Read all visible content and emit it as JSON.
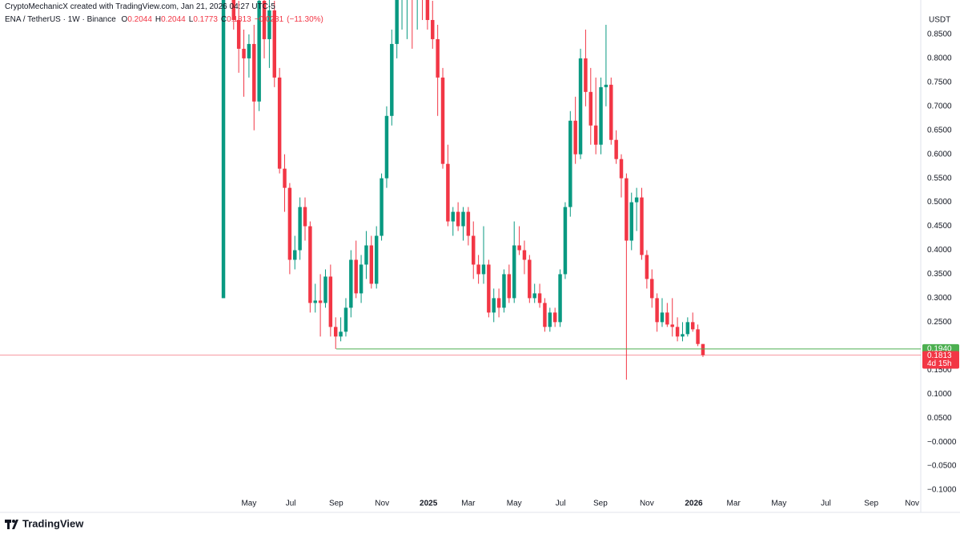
{
  "chart_data": {
    "type": "candlestick",
    "attribution": "CryptoMechanicX created with TradingView.com, Jan 21, 2026 04:27 UTC-5",
    "legend": {
      "symbol": "ENA / TetherUS · 1W · Binance",
      "ohlc": [
        {
          "label": "O",
          "value": 0.2044
        },
        {
          "label": "H",
          "value": 0.2044
        },
        {
          "label": "L",
          "value": 0.1773
        },
        {
          "label": "C",
          "value": 0.1813
        }
      ],
      "change": "−0.0231",
      "change_pct": "(−11.30%)"
    },
    "currency": "USDT",
    "brand": "TradingView",
    "up_color": "#089981",
    "down_color": "#f23645",
    "open": [
      0.3,
      1.1,
      0.98,
      0.88,
      0.82,
      0.8,
      0.83,
      0.71,
      0.92,
      0.84,
      0.9,
      0.76,
      0.57,
      0.53,
      0.38,
      0.4,
      0.49,
      0.45,
      0.29,
      0.295,
      0.29,
      0.345,
      0.24,
      0.22,
      0.23,
      0.28,
      0.38,
      0.31,
      0.37,
      0.41,
      0.33,
      0.43,
      0.55,
      0.68,
      0.83,
      0.95,
      1.0,
      1.02,
      0.98,
      1.0,
      0.93,
      0.88,
      0.84,
      0.76,
      0.58,
      0.46,
      0.48,
      0.45,
      0.48,
      0.43,
      0.37,
      0.35,
      0.37,
      0.27,
      0.3,
      0.28,
      0.35,
      0.3,
      0.41,
      0.4,
      0.38,
      0.3,
      0.31,
      0.29,
      0.24,
      0.27,
      0.25,
      0.35,
      0.49,
      0.67,
      0.6,
      0.8,
      0.73,
      0.66,
      0.62,
      0.74,
      0.745,
      0.63,
      0.59,
      0.55,
      0.42,
      0.5,
      0.51,
      0.39,
      0.34,
      0.3,
      0.25,
      0.27,
      0.245,
      0.24,
      0.22,
      0.225,
      0.25,
      0.235,
      0.2044
    ],
    "high": [
      1.52,
      1.25,
      1.02,
      0.92,
      0.86,
      0.85,
      0.87,
      0.98,
      0.96,
      0.93,
      0.92,
      0.78,
      0.6,
      0.54,
      0.43,
      0.51,
      0.51,
      0.46,
      0.33,
      0.35,
      0.36,
      0.37,
      0.26,
      0.26,
      0.3,
      0.4,
      0.42,
      0.39,
      0.44,
      0.43,
      0.45,
      0.56,
      0.7,
      0.86,
      0.98,
      1.05,
      1.1,
      1.12,
      1.06,
      1.08,
      0.97,
      0.92,
      0.87,
      0.78,
      0.62,
      0.49,
      0.5,
      0.49,
      0.49,
      0.46,
      0.39,
      0.45,
      0.38,
      0.32,
      0.32,
      0.36,
      0.37,
      0.46,
      0.45,
      0.42,
      0.39,
      0.33,
      0.33,
      0.3,
      0.28,
      0.28,
      0.36,
      0.5,
      0.69,
      0.72,
      0.82,
      0.86,
      0.78,
      0.76,
      0.76,
      0.87,
      0.76,
      0.65,
      0.6,
      0.56,
      0.52,
      0.53,
      0.53,
      0.4,
      0.36,
      0.31,
      0.3,
      0.29,
      0.3,
      0.26,
      0.25,
      0.26,
      0.27,
      0.245,
      0.2044
    ],
    "low": [
      0.3,
      0.95,
      0.86,
      0.77,
      0.72,
      0.76,
      0.65,
      0.69,
      0.8,
      0.78,
      0.74,
      0.56,
      0.48,
      0.35,
      0.36,
      0.38,
      0.42,
      0.27,
      0.27,
      0.22,
      0.28,
      0.22,
      0.194,
      0.21,
      0.22,
      0.26,
      0.3,
      0.29,
      0.34,
      0.32,
      0.32,
      0.42,
      0.53,
      0.66,
      0.8,
      0.86,
      0.84,
      0.82,
      0.86,
      0.88,
      0.86,
      0.82,
      0.68,
      0.57,
      0.45,
      0.43,
      0.44,
      0.42,
      0.41,
      0.34,
      0.33,
      0.33,
      0.26,
      0.25,
      0.26,
      0.27,
      0.29,
      0.29,
      0.39,
      0.35,
      0.29,
      0.29,
      0.28,
      0.23,
      0.23,
      0.24,
      0.24,
      0.34,
      0.47,
      0.58,
      0.59,
      0.7,
      0.62,
      0.6,
      0.6,
      0.7,
      0.62,
      0.58,
      0.51,
      0.13,
      0.4,
      0.44,
      0.38,
      0.32,
      0.28,
      0.23,
      0.24,
      0.24,
      0.22,
      0.21,
      0.21,
      0.22,
      0.23,
      0.2,
      0.1773
    ],
    "close": [
      1.1,
      0.98,
      0.88,
      0.82,
      0.8,
      0.83,
      0.71,
      0.92,
      0.84,
      0.9,
      0.76,
      0.57,
      0.53,
      0.38,
      0.4,
      0.49,
      0.45,
      0.29,
      0.295,
      0.29,
      0.345,
      0.24,
      0.22,
      0.23,
      0.28,
      0.38,
      0.31,
      0.37,
      0.41,
      0.33,
      0.43,
      0.55,
      0.68,
      0.83,
      0.95,
      1.0,
      1.02,
      0.98,
      1.0,
      0.93,
      0.88,
      0.84,
      0.76,
      0.58,
      0.46,
      0.48,
      0.45,
      0.48,
      0.43,
      0.37,
      0.35,
      0.37,
      0.27,
      0.3,
      0.28,
      0.35,
      0.3,
      0.41,
      0.4,
      0.38,
      0.3,
      0.31,
      0.29,
      0.24,
      0.27,
      0.25,
      0.35,
      0.49,
      0.67,
      0.6,
      0.8,
      0.73,
      0.66,
      0.62,
      0.74,
      0.745,
      0.63,
      0.59,
      0.55,
      0.42,
      0.5,
      0.51,
      0.39,
      0.34,
      0.3,
      0.25,
      0.27,
      0.245,
      0.24,
      0.22,
      0.225,
      0.25,
      0.235,
      0.2044,
      0.1813
    ],
    "xlim": [
      -43.8,
      136.7
    ],
    "xticks": [
      {
        "value": 5.0,
        "label": "May"
      },
      {
        "value": 13.2,
        "label": "Jul"
      },
      {
        "value": 22.1,
        "label": "Sep"
      },
      {
        "value": 31.1,
        "label": "Nov"
      },
      {
        "value": 40.2,
        "label": "2025"
      },
      {
        "value": 48.0,
        "label": "Mar"
      },
      {
        "value": 57.0,
        "label": "May"
      },
      {
        "value": 66.1,
        "label": "Jul"
      },
      {
        "value": 73.9,
        "label": "Sep"
      },
      {
        "value": 83.0,
        "label": "Nov"
      },
      {
        "value": 92.2,
        "label": "2026"
      },
      {
        "value": 100.0,
        "label": "Mar"
      },
      {
        "value": 108.9,
        "label": "May"
      },
      {
        "value": 118.1,
        "label": "Jul"
      },
      {
        "value": 127.0,
        "label": "Sep"
      },
      {
        "value": 135.0,
        "label": "Nov"
      }
    ],
    "ylim": [
      -0.13,
      0.905
    ],
    "yticks": [
      {
        "value": 0.85,
        "label": "0.8500"
      },
      {
        "value": 0.8,
        "label": "0.8000"
      },
      {
        "value": 0.75,
        "label": "0.7500"
      },
      {
        "value": 0.7,
        "label": "0.7000"
      },
      {
        "value": 0.65,
        "label": "0.6500"
      },
      {
        "value": 0.6,
        "label": "0.6000"
      },
      {
        "value": 0.55,
        "label": "0.5500"
      },
      {
        "value": 0.5,
        "label": "0.5000"
      },
      {
        "value": 0.45,
        "label": "0.4500"
      },
      {
        "value": 0.4,
        "label": "0.4000"
      },
      {
        "value": 0.35,
        "label": "0.3500"
      },
      {
        "value": 0.3,
        "label": "0.3000"
      },
      {
        "value": 0.25,
        "label": "0.2500"
      },
      {
        "value": 0.15,
        "label": "0.1500"
      },
      {
        "value": 0.1,
        "label": "0.1000"
      },
      {
        "value": 0.05,
        "label": "0.0500"
      },
      {
        "value": 0,
        "label": "−0.0000"
      },
      {
        "value": -0.05,
        "label": "−0.0500"
      },
      {
        "value": -0.1,
        "label": "−0.1000"
      }
    ],
    "grid": false,
    "horizontal_line": {
      "value": 0.194,
      "label": "0.1940",
      "color": "#4caf50"
    },
    "last_price": {
      "value": 0.1813,
      "label": "0.1813",
      "countdown": "4d 15h",
      "color": "#f23645"
    }
  }
}
